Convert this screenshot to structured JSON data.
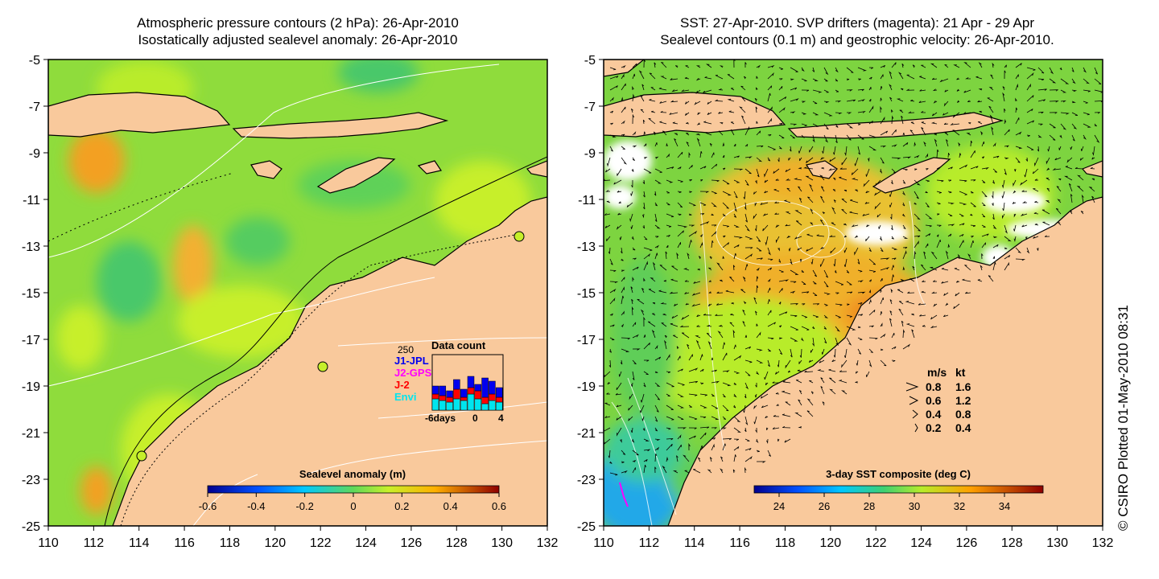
{
  "left_panel": {
    "title_line1": "Atmospheric pressure contours (2 hPa): 26-Apr-2010",
    "title_line2": "Isostatically adjusted sealevel anomaly: 26-Apr-2010",
    "colorbar_title": "Sealevel anomaly (m)",
    "colorbar_ticks": [
      "-0.6",
      "-0.4",
      "-0.2",
      "0",
      "0.2",
      "0.4",
      "0.6"
    ],
    "inset": {
      "title": "Data count",
      "ymax_label": "250",
      "legend": [
        {
          "label": "J1-JPL",
          "color": "#0000ee"
        },
        {
          "label": "J2-GPS",
          "color": "#ff00ff"
        },
        {
          "label": "J-2",
          "color": "#ff0000"
        },
        {
          "label": "Envi",
          "color": "#00e5ee"
        }
      ],
      "xticks": [
        "-6days",
        "0",
        "4"
      ]
    }
  },
  "right_panel": {
    "title_line1": "SST: 27-Apr-2010. SVP drifters (magenta): 21 Apr - 29 Apr",
    "title_line2": "Sealevel contours (0.1 m) and geostrophic velocity: 26-Apr-2010.",
    "colorbar_title": "3-day SST composite (deg C)",
    "colorbar_ticks": [
      "24",
      "26",
      "28",
      "30",
      "32",
      "34"
    ],
    "velocity_legend": {
      "header": [
        "m/s",
        "kt"
      ],
      "rows": [
        [
          "0.8",
          "1.6"
        ],
        [
          "0.6",
          "1.2"
        ],
        [
          "0.4",
          "0.8"
        ],
        [
          "0.2",
          "0.4"
        ]
      ]
    }
  },
  "axes": {
    "lat_ticks": [
      "-5",
      "-7",
      "-9",
      "-11",
      "-13",
      "-15",
      "-17",
      "-19",
      "-21",
      "-23",
      "-25"
    ],
    "lon_ticks": [
      "110",
      "112",
      "114",
      "116",
      "118",
      "120",
      "122",
      "124",
      "126",
      "128",
      "130",
      "132"
    ]
  },
  "watermark": "© CSIRO Plotted 01-May-2010 08:31",
  "colors": {
    "land": "#f9c99c",
    "ocean_green": "#6fd64a",
    "ocean_yellowgreen": "#c6ef2a",
    "anomaly_orange": "#f6b22a",
    "sst_orange": "#f4a020"
  }
}
